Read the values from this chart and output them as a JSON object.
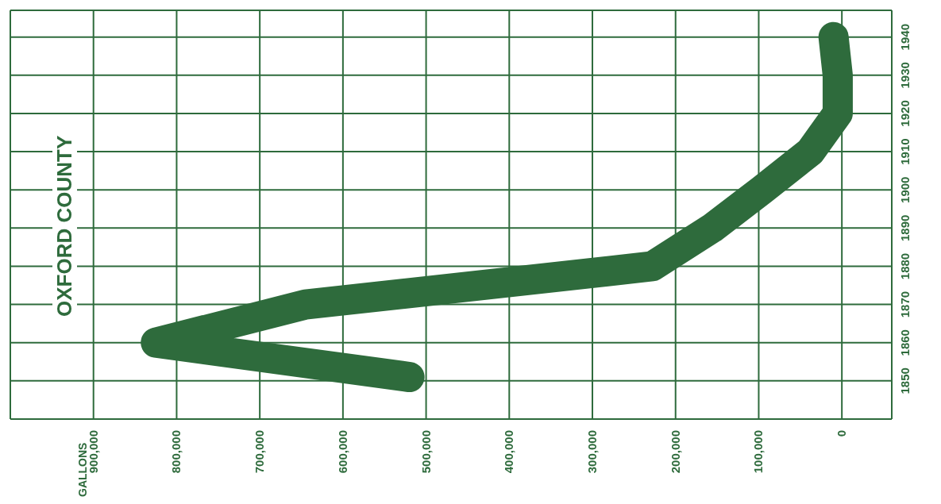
{
  "chart_data": {
    "type": "line",
    "orientation": "horizontal",
    "title": "OXFORD COUNTY",
    "annotations": [
      "GALLONS"
    ],
    "x": [
      1851,
      1860,
      1870,
      1880,
      1890,
      1900,
      1910,
      1920,
      1930,
      1940
    ],
    "series": [
      {
        "color": "#2e6b3c",
        "values": [
          520000,
          825000,
          645000,
          228000,
          156000,
          96000,
          38000,
          5000,
          5000,
          10000
        ]
      }
    ],
    "xlim": [
      1000000,
      -60000
    ],
    "xticks": [
      {
        "value": 900000,
        "label": "900,000"
      },
      {
        "value": 800000,
        "label": "800,000"
      },
      {
        "value": 700000,
        "label": "700,000"
      },
      {
        "value": 600000,
        "label": "600,000"
      },
      {
        "value": 500000,
        "label": "500,000"
      },
      {
        "value": 400000,
        "label": "400,000"
      },
      {
        "value": 300000,
        "label": "300,000"
      },
      {
        "value": 200000,
        "label": "200,000"
      },
      {
        "value": 100000,
        "label": "100,000"
      },
      0
    ],
    "ylim": [
      1840,
      1947
    ],
    "yticks": [
      1850,
      1860,
      1870,
      1880,
      1890,
      1900,
      1910,
      1920,
      1930,
      1940
    ],
    "grid": true,
    "marker": "none",
    "line_style": "solid"
  }
}
